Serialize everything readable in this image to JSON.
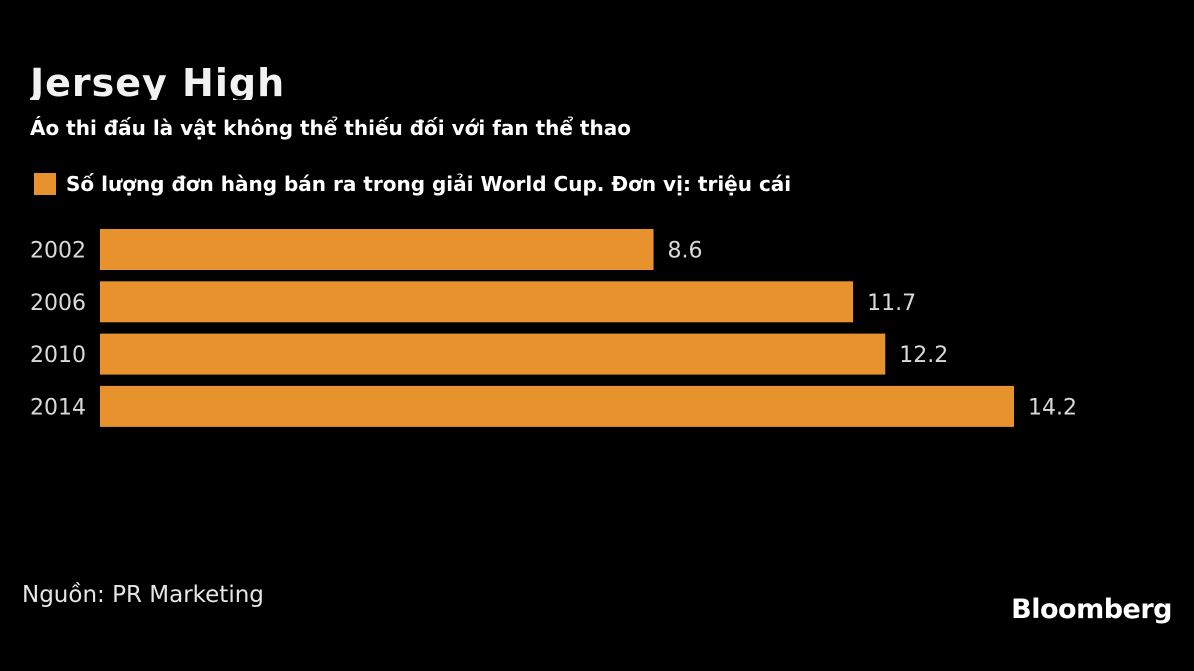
{
  "title": "Jersey High",
  "subtitle": "Áo thi đấu là vật không thể thiếu đối với fan thể thao",
  "source": "Nguồn: PR Marketing",
  "brand": "Bloomberg",
  "colors": {
    "background": "#000000",
    "bar": "#e8922e",
    "text": "#ffffff",
    "tick_text": "#d9d9d9"
  },
  "chart_data": {
    "type": "bar",
    "orientation": "horizontal",
    "categories": [
      "2002",
      "2006",
      "2010",
      "2014"
    ],
    "series": [
      {
        "name": "Số lượng đơn hàng bán ra trong giải World Cup. Đơn vị: triệu cái",
        "values": [
          8.6,
          11.7,
          12.2,
          14.2
        ]
      }
    ],
    "data_labels": [
      "8.6",
      "11.7",
      "12.2",
      "14.2"
    ],
    "xlim": [
      0,
      14.2
    ],
    "grid": false,
    "legend_position": "top-left"
  }
}
